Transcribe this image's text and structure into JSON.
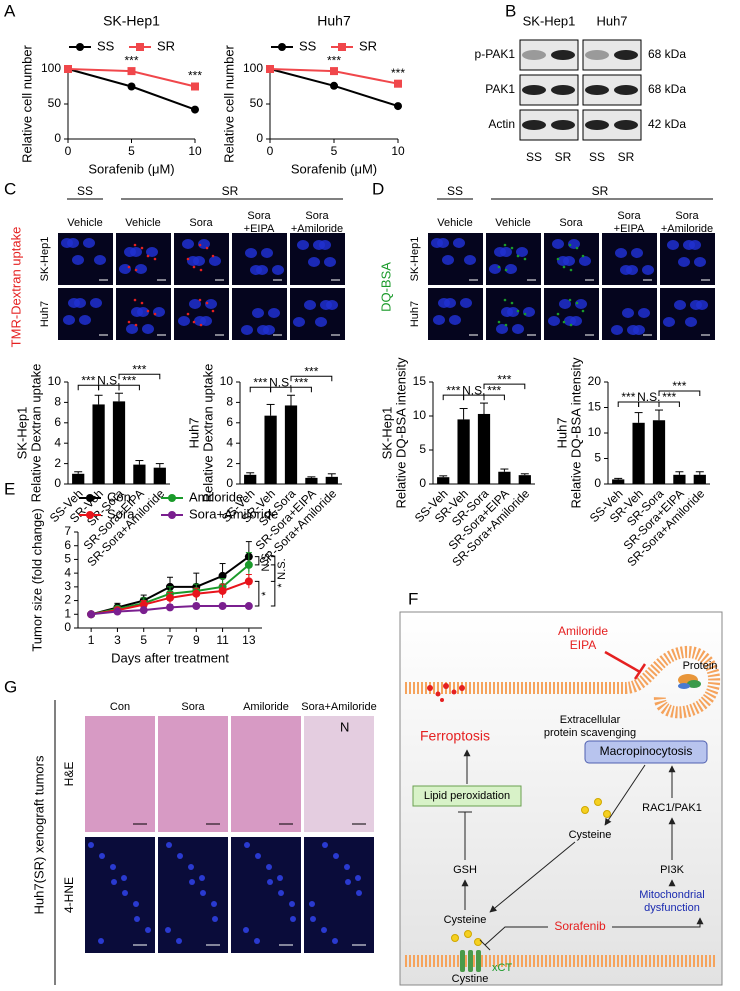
{
  "panel_labels": [
    "A",
    "B",
    "C",
    "D",
    "E",
    "F",
    "G"
  ],
  "chart_data": [
    {
      "type": "line",
      "title": "SK-Hep1",
      "xlabel": "Sorafenib (μM)",
      "ylabel": "Relative cell number",
      "x": [
        0,
        5,
        10
      ],
      "xlim": [
        0,
        10
      ],
      "xticks": [
        0,
        5,
        10
      ],
      "ylim": [
        0,
        100
      ],
      "yticks": [
        0,
        50,
        100
      ],
      "legend": "top",
      "series": [
        {
          "name": "SS",
          "color": "#000000",
          "marker": "circle",
          "values": [
            100,
            75,
            42
          ]
        },
        {
          "name": "SR",
          "color": "#f0474b",
          "marker": "square",
          "values": [
            100,
            97,
            75
          ]
        }
      ],
      "annotations": [
        {
          "text": "***",
          "x": 5
        },
        {
          "text": "***",
          "x": 10
        }
      ]
    },
    {
      "type": "line",
      "title": "Huh7",
      "xlabel": "Sorafenib (μM)",
      "ylabel": "Relative cell number",
      "x": [
        0,
        5,
        10
      ],
      "xlim": [
        0,
        10
      ],
      "xticks": [
        0,
        5,
        10
      ],
      "ylim": [
        0,
        100
      ],
      "yticks": [
        0,
        50,
        100
      ],
      "legend": "top",
      "series": [
        {
          "name": "SS",
          "color": "#000000",
          "marker": "circle",
          "values": [
            100,
            76,
            47
          ]
        },
        {
          "name": "SR",
          "color": "#f0474b",
          "marker": "square",
          "values": [
            100,
            97,
            79
          ]
        }
      ],
      "annotations": [
        {
          "text": "***",
          "x": 5
        },
        {
          "text": "***",
          "x": 10
        }
      ]
    },
    {
      "type": "bar",
      "ylabel": [
        "SK-Hep1",
        "Relative Dextran uptake"
      ],
      "categories": [
        "SS-Veh",
        "SR-Veh",
        "SR-Sora",
        "SR-Sora+EIPA",
        "SR-Sora+Amiloride"
      ],
      "values": [
        1,
        7.8,
        8.1,
        1.9,
        1.6
      ],
      "errors": [
        0.2,
        0.9,
        0.8,
        0.4,
        0.4
      ],
      "color": "#000000",
      "ylim": [
        0,
        10
      ],
      "yticks": [
        0,
        2,
        4,
        6,
        8,
        10
      ],
      "annotations": [
        "***",
        "N.S.",
        "***",
        "***"
      ]
    },
    {
      "type": "bar",
      "ylabel": [
        "Huh7",
        "Relative Dextran uptake"
      ],
      "categories": [
        "SS-Veh",
        "SR-Veh",
        "SR-Sora",
        "SR-Sora+EIPA",
        "SR-Sora+Amiloride"
      ],
      "values": [
        0.9,
        6.7,
        7.7,
        0.6,
        0.7
      ],
      "errors": [
        0.2,
        1.1,
        1,
        0.1,
        0.3
      ],
      "color": "#000000",
      "ylim": [
        0,
        10
      ],
      "yticks": [
        0,
        2,
        4,
        6,
        8,
        10
      ],
      "annotations": [
        "***",
        "N.S.",
        "***",
        "***"
      ]
    },
    {
      "type": "bar",
      "ylabel": [
        "SK-Hep1",
        "Relative DQ-BSA intensity"
      ],
      "categories": [
        "SS-Veh",
        "SR-Veh",
        "SR-Sora",
        "SR-Sora+EIPA",
        "SR-Sora+Amiloride"
      ],
      "values": [
        1,
        9.5,
        10.3,
        1.8,
        1.3
      ],
      "errors": [
        0.2,
        1.6,
        1.6,
        0.4,
        0.2
      ],
      "color": "#000000",
      "ylim": [
        0,
        15
      ],
      "yticks": [
        0,
        5,
        10,
        15
      ],
      "annotations": [
        "***",
        "N.S.",
        "***",
        "***"
      ]
    },
    {
      "type": "bar",
      "ylabel": [
        "Huh7",
        "Relative DQ-BSA intensity"
      ],
      "categories": [
        "SS-Veh",
        "SR-Veh",
        "SR-Sora",
        "SR-Sora+EIPA",
        "SR-Sora+Amiloride"
      ],
      "values": [
        0.9,
        12,
        12.5,
        1.8,
        1.8
      ],
      "errors": [
        0.2,
        2,
        2,
        0.6,
        0.6
      ],
      "color": "#000000",
      "ylim": [
        0,
        20
      ],
      "yticks": [
        0,
        5,
        10,
        15,
        20
      ],
      "annotations": [
        "***",
        "N.S.",
        "***",
        "***"
      ]
    },
    {
      "type": "line",
      "xlabel": "Days after treatment",
      "ylabel": "Tumor size (fold change)",
      "x": [
        1,
        3,
        5,
        7,
        9,
        11,
        13
      ],
      "xlim": [
        0,
        14
      ],
      "xticks": [
        1,
        3,
        5,
        7,
        9,
        11,
        13
      ],
      "ylim": [
        0,
        7
      ],
      "yticks": [
        0,
        1,
        2,
        3,
        4,
        5,
        6,
        7
      ],
      "legend": "top",
      "series": [
        {
          "name": "Con",
          "color": "#000000",
          "marker": "circle",
          "values": [
            1,
            1.5,
            2,
            3,
            3,
            3.8,
            5.2
          ],
          "errors": [
            0,
            0.3,
            0.4,
            0.7,
            1,
            0.9,
            1.1
          ]
        },
        {
          "name": "Amiloride",
          "color": "#1a9a2a",
          "marker": "circle",
          "values": [
            1,
            1.4,
            1.8,
            2.5,
            2.7,
            3,
            4.6
          ],
          "errors": [
            0,
            0.2,
            0.4,
            0.5,
            0.5,
            0.6,
            0.9
          ]
        },
        {
          "name": "Sora",
          "color": "#e8141c",
          "marker": "circle",
          "values": [
            1,
            1.3,
            1.7,
            2.2,
            2.5,
            2.7,
            3.4
          ],
          "errors": [
            0,
            0.2,
            0.3,
            0.4,
            0.4,
            0.5,
            0.5
          ]
        },
        {
          "name": "Sora+Amiloride",
          "color": "#7a1f8f",
          "marker": "circle",
          "values": [
            1,
            1.2,
            1.3,
            1.5,
            1.6,
            1.6,
            1.6
          ],
          "errors": [
            0,
            0.1,
            0.2,
            0.2,
            0.2,
            0.2,
            0.1
          ]
        }
      ],
      "annotations": [
        "N.S.",
        "N.S.",
        "*",
        "*"
      ]
    }
  ],
  "blot": {
    "cell_lines": [
      "SK-Hep1",
      "Huh7"
    ],
    "rows": [
      {
        "label": "p-PAK1",
        "size": "68 kDa"
      },
      {
        "label": "PAK1",
        "size": "68 kDa"
      },
      {
        "label": "Actin",
        "size": "42 kDa"
      }
    ],
    "lanes": [
      "SS",
      "SR",
      "SS",
      "SR"
    ]
  },
  "imaging_c": {
    "stain": "TMR-Dextran uptake",
    "groups": [
      "SS",
      "SR"
    ],
    "conditions": [
      [
        "Vehicle"
      ],
      [
        "Vehicle"
      ],
      [
        "Sora"
      ],
      [
        "Sora",
        "+EIPA"
      ],
      [
        "Sora",
        "+Amiloride"
      ]
    ],
    "rows": [
      "SK-Hep1",
      "Huh7"
    ]
  },
  "imaging_d": {
    "stain": "DQ-BSA",
    "groups": [
      "SS",
      "SR"
    ],
    "conditions": [
      [
        "Vehicle"
      ],
      [
        "Vehicle"
      ],
      [
        "Sora"
      ],
      [
        "Sora",
        "+EIPA"
      ],
      [
        "Sora",
        "+Amiloride"
      ]
    ],
    "rows": [
      "SK-Hep1",
      "Huh7"
    ]
  },
  "imaging_f": {
    "side_label": "Huh7(SR) xenograft tumors",
    "columns": [
      "Con",
      "Sora",
      "Amiloride",
      "Sora+Amiloride"
    ],
    "rows": [
      "H&E",
      "4-HNE"
    ],
    "annotation": "N"
  },
  "diagram": {
    "inhibitors": [
      "Amiloride",
      "EIPA"
    ],
    "protein": "Protein",
    "scavenging": [
      "Extracellular",
      "protein scavenging"
    ],
    "ferroptosis": "Ferroptosis",
    "macropinocytosis": "Macropinocytosis",
    "lipid_peroxidation": "Lipid peroxidation",
    "cysteine_upper": "Cysteine",
    "rac1_pak1": "RAC1/PAK1",
    "gsh": "GSH",
    "pi3k": "PI3K",
    "cysteine_lower": "Cysteine",
    "mitochondrial": [
      "Mitochondrial",
      "dysfunction"
    ],
    "sorafenib": "Sorafenib",
    "xct": "xCT",
    "cystine": "Cystine"
  }
}
